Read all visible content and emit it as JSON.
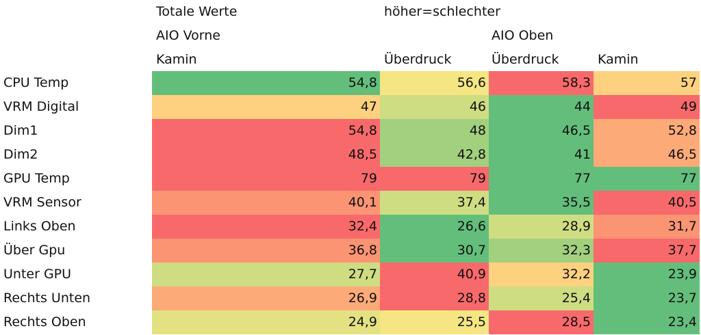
{
  "header": {
    "row1": [
      "Totale Werte",
      "höher=schlechter"
    ],
    "row2": [
      "AIO Vorne",
      "AIO Oben"
    ],
    "row3": [
      "Kamin",
      "Überdruck",
      "Überdruck",
      "Kamin"
    ]
  },
  "rows": [
    {
      "label": "CPU Temp",
      "values": [
        "54,8",
        "56,6",
        "58,3",
        "57"
      ],
      "colors": [
        "#63be7b",
        "#f5e683",
        "#f8696b",
        "#fdd17f"
      ]
    },
    {
      "label": "VRM Digital",
      "values": [
        "47",
        "46",
        "44",
        "49"
      ],
      "colors": [
        "#fdd17f",
        "#cfdd82",
        "#63be7b",
        "#f8696b"
      ]
    },
    {
      "label": "Dim1",
      "values": [
        "54,8",
        "48",
        "46,5",
        "52,8"
      ],
      "colors": [
        "#f8696b",
        "#a2d07e",
        "#63be7b",
        "#fcaa78"
      ]
    },
    {
      "label": "Dim2",
      "values": [
        "48,5",
        "42,8",
        "41",
        "46,5"
      ],
      "colors": [
        "#f8696b",
        "#a2d07e",
        "#63be7b",
        "#fcaa78"
      ]
    },
    {
      "label": "GPU Temp",
      "values": [
        "79",
        "79",
        "77",
        "77"
      ],
      "colors": [
        "#f8696b",
        "#f8696b",
        "#63be7b",
        "#63be7b"
      ]
    },
    {
      "label": "VRM Sensor",
      "values": [
        "40,1",
        "37,4",
        "35,5",
        "40,5"
      ],
      "colors": [
        "#fa9473",
        "#cfdd82",
        "#63be7b",
        "#f8696b"
      ]
    },
    {
      "label": "Links Oben",
      "values": [
        "32,4",
        "26,6",
        "28,9",
        "31,7"
      ],
      "colors": [
        "#f8696b",
        "#63be7b",
        "#cfdd82",
        "#fa9473"
      ]
    },
    {
      "label": "Über Gpu",
      "values": [
        "36,8",
        "30,7",
        "32,3",
        "37,7"
      ],
      "colors": [
        "#fa9473",
        "#63be7b",
        "#a2d07e",
        "#f8696b"
      ]
    },
    {
      "label": "Unter GPU",
      "values": [
        "27,7",
        "40,9",
        "32,2",
        "23,9"
      ],
      "colors": [
        "#cfdd82",
        "#f8696b",
        "#fdd17f",
        "#63be7b"
      ]
    },
    {
      "label": "Rechts Unten",
      "values": [
        "26,9",
        "28,8",
        "25,4",
        "23,7"
      ],
      "colors": [
        "#fcaa78",
        "#f8696b",
        "#cfdd82",
        "#63be7b"
      ]
    },
    {
      "label": "Rechts Oben",
      "values": [
        "24,9",
        "25,5",
        "28,5",
        "23,4"
      ],
      "colors": [
        "#e4e183",
        "#f5e683",
        "#f8696b",
        "#63be7b"
      ]
    }
  ]
}
